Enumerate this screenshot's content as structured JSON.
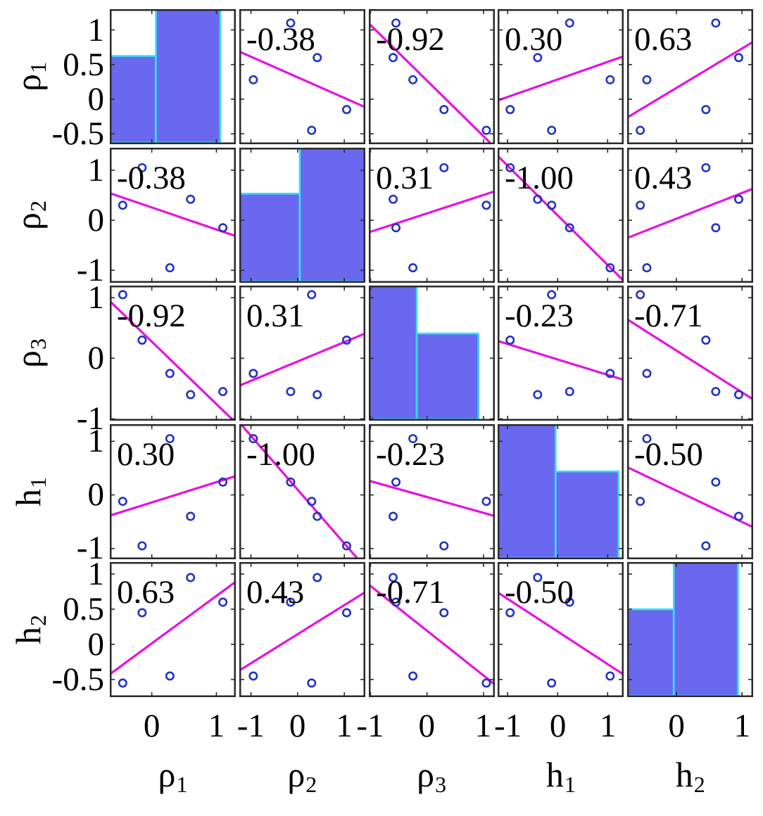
{
  "chart_data": {
    "type": "scatter",
    "subtype": "scatter_plot_matrix",
    "title": "",
    "description": "5x5 correlation plot matrix (pairwise scatter plots with least-squares fit lines and printed correlation coefficients; 2-bin histograms on the diagonal)",
    "n_observations": 5,
    "variables": [
      {
        "name": "rho_1",
        "label": "ρ",
        "subscript": "1",
        "axis_range": [
          -0.65,
          1.3
        ],
        "x_tick_values": [
          0,
          1
        ],
        "x_tick_labels": [
          "0",
          "1"
        ],
        "y_tick_values": [
          1,
          0.5,
          0,
          -0.5
        ],
        "y_tick_labels": [
          "1",
          "0.5",
          "0",
          "-0.5"
        ],
        "hist": {
          "counts": [
            2,
            3
          ],
          "bins": [
            {
              "x0": 0.0,
              "x1": 0.366,
              "h": 0.653
            },
            {
              "x0": 0.366,
              "x1": 0.877,
              "h": 1.0
            }
          ]
        }
      },
      {
        "name": "rho_2",
        "label": "ρ",
        "subscript": "2",
        "axis_range": [
          -1.25,
          1.45
        ],
        "x_tick_values": [
          -1,
          0,
          1
        ],
        "x_tick_labels": [
          "-1",
          "0",
          "1"
        ],
        "y_tick_values": [
          1,
          0,
          -1
        ],
        "y_tick_labels": [
          "1",
          "0",
          "-1"
        ],
        "hist": {
          "counts": [
            2,
            3
          ],
          "bins": [
            {
              "x0": 0.0,
              "x1": 0.48,
              "h": 0.66
            },
            {
              "x0": 0.48,
              "x1": 1.0,
              "h": 1.0
            }
          ]
        }
      },
      {
        "name": "rho_3",
        "label": "ρ",
        "subscript": "3",
        "axis_range": [
          -1.03,
          1.2
        ],
        "x_tick_values": [
          -1,
          0,
          1
        ],
        "x_tick_labels": [
          "-1",
          "0",
          "1"
        ],
        "y_tick_values": [
          1,
          0,
          -1
        ],
        "y_tick_labels": [
          "1",
          "0",
          "-1"
        ],
        "hist": {
          "counts": [
            3,
            2
          ],
          "bins": [
            {
              "x0": 0.0,
              "x1": 0.38,
              "h": 1.0
            },
            {
              "x0": 0.38,
              "x1": 0.87,
              "h": 0.645
            }
          ]
        }
      },
      {
        "name": "h_1",
        "label": "h",
        "subscript": "1",
        "axis_range": [
          -1.2,
          1.32
        ],
        "x_tick_values": [
          -1,
          0,
          1
        ],
        "x_tick_labels": [
          "-1",
          "0",
          "1"
        ],
        "y_tick_values": [
          1,
          0,
          -1
        ],
        "y_tick_labels": [
          "1",
          "0",
          "-1"
        ],
        "hist": {
          "counts": [
            3,
            2
          ],
          "bins": [
            {
              "x0": 0.0,
              "x1": 0.46,
              "h": 1.0
            },
            {
              "x0": 0.46,
              "x1": 0.96,
              "h": 0.65
            }
          ]
        }
      },
      {
        "name": "h_2",
        "label": "h",
        "subscript": "2",
        "axis_range": [
          -0.75,
          1.17
        ],
        "x_tick_values": [
          0,
          1
        ],
        "x_tick_labels": [
          "0",
          "1"
        ],
        "y_tick_values": [
          1,
          0.5,
          0,
          -0.5
        ],
        "y_tick_labels": [
          "1",
          "0.5",
          "0",
          "-0.5"
        ],
        "hist": {
          "counts": [
            2,
            3
          ],
          "bins": [
            {
              "x0": 0.0,
              "x1": 0.37,
              "h": 0.65
            },
            {
              "x0": 0.37,
              "x1": 0.88,
              "h": 1.0
            }
          ]
        }
      }
    ],
    "observations": [
      [
        -0.45,
        0.3,
        1.05,
        -0.12,
        -0.55
      ],
      [
        -0.15,
        1.05,
        0.3,
        -0.95,
        0.45
      ],
      [
        0.28,
        -0.95,
        -0.25,
        1.05,
        -0.45
      ],
      [
        0.6,
        0.42,
        -0.6,
        -0.4,
        0.95
      ],
      [
        1.1,
        -0.15,
        -0.55,
        0.24,
        0.6
      ]
    ],
    "correlation_labels": [
      [
        "",
        "-0.38",
        "-0.92",
        "0.30",
        "0.63"
      ],
      [
        "-0.38",
        "",
        "0.31",
        "-1.00",
        "0.43"
      ],
      [
        "-0.92",
        "0.31",
        "",
        "-0.23",
        "-0.71"
      ],
      [
        "0.30",
        "-1.00",
        "-0.23",
        "",
        "-0.50"
      ],
      [
        "0.63",
        "0.43",
        "-0.71",
        "-0.50",
        ""
      ]
    ],
    "legend": null,
    "grid": false,
    "style": {
      "marker_color": "#2233c4",
      "fit_line_color": "#e811e0",
      "hist_fill": "#6a68ef",
      "hist_edge": "#35e0fd",
      "axis_color": "#2a2a2a",
      "text_color": "#000000",
      "background": "#ffffff"
    }
  }
}
